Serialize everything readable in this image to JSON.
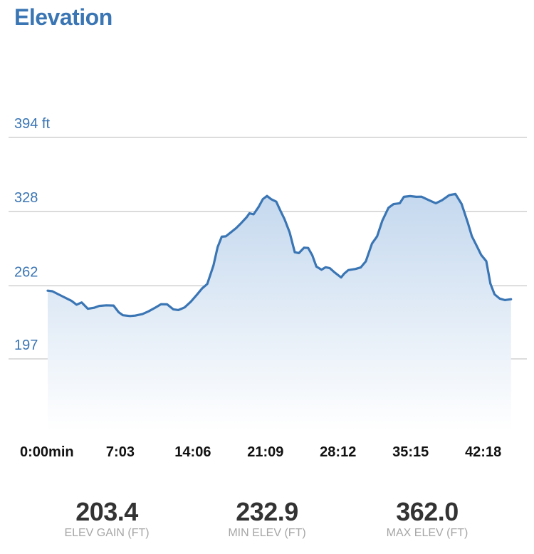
{
  "header": {
    "title": "Elevation"
  },
  "colors": {
    "accent": "#3a75b4",
    "line": "#3a75b4",
    "grid": "#b9b9b9",
    "fill_top": "#c4d8ee"
  },
  "chart_data": {
    "type": "area",
    "title": "Elevation",
    "ylabel": "",
    "xlabel": "",
    "y_unit": "ft",
    "ylim": [
      133,
      394
    ],
    "y_ticks": [
      {
        "value": 394,
        "label": "394 ft"
      },
      {
        "value": 328,
        "label": "328"
      },
      {
        "value": 262,
        "label": "262"
      },
      {
        "value": 197,
        "label": "197"
      }
    ],
    "x_range_min": [
      0,
      45.16
    ],
    "x_ticks": [
      {
        "value": 0,
        "label": "0:00min"
      },
      {
        "value": 7.05,
        "label": "7:03"
      },
      {
        "value": 14.1,
        "label": "14:06"
      },
      {
        "value": 21.15,
        "label": "21:09"
      },
      {
        "value": 28.2,
        "label": "28:12"
      },
      {
        "value": 35.25,
        "label": "35:15"
      },
      {
        "value": 42.3,
        "label": "42:18"
      }
    ],
    "grid": true,
    "series": [
      {
        "x": [
          0,
          0.45,
          1.2,
          2.3,
          2.8,
          3.3,
          3.9,
          4.5,
          5.0,
          5.7,
          6.4,
          6.9,
          7.3,
          8.0,
          8.5,
          9.2,
          9.8,
          10.5,
          11.0,
          11.6,
          12.2,
          12.7,
          13.3,
          13.9,
          14.5,
          15.0,
          15.5,
          16.1,
          16.5,
          16.9,
          17.3,
          17.8,
          18.3,
          18.8,
          19.3,
          19.6,
          20.0,
          20.5,
          20.9,
          21.3,
          21.7,
          22.2,
          22.6,
          23.0,
          23.5,
          24.0,
          24.4,
          24.9,
          25.3,
          25.7,
          26.1,
          26.6,
          27.0,
          27.4,
          27.9,
          28.5,
          28.8,
          29.2,
          29.9,
          30.4,
          30.9,
          31.5,
          32.0,
          32.5,
          33.1,
          33.6,
          34.2,
          34.6,
          35.2,
          35.8,
          36.3,
          37.0,
          37.7,
          38.3,
          39.0,
          39.6,
          40.2,
          40.8,
          41.2,
          41.7,
          42.1,
          42.6,
          43.0,
          43.4,
          43.9,
          44.4,
          45.0
        ]
      }
    ]
  },
  "stats": [
    {
      "value": "203.4",
      "label": "ELEV GAIN (FT)"
    },
    {
      "value": "232.9",
      "label": "MIN ELEV (FT)"
    },
    {
      "value": "362.0",
      "label": "MAX ELEV (FT)"
    }
  ]
}
